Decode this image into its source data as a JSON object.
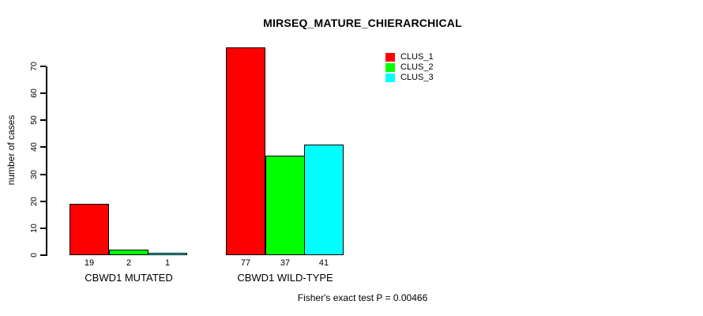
{
  "title": "MIRSEQ_MATURE_CHIERARCHICAL",
  "footnote": "Fisher's exact test P = 0.00466",
  "colors": {
    "background": "#ffffff",
    "axis": "#000000",
    "text": "#000000",
    "bar_border": "#000000",
    "clus1": "#ff0000",
    "clus2": "#00ff00",
    "clus3": "#00ffff"
  },
  "chart_data": {
    "type": "bar",
    "title": "MIRSEQ_MATURE_CHIERARCHICAL",
    "xlabel": "",
    "ylabel": "number of cases",
    "ylim": [
      0,
      70
    ],
    "yticks": [
      0,
      10,
      20,
      30,
      40,
      50,
      60,
      70
    ],
    "grid": false,
    "legend_position": "top-right",
    "categories": [
      "CBWD1 MUTATED",
      "CBWD1 WILD-TYPE"
    ],
    "series": [
      {
        "name": "CLUS_1",
        "color": "#ff0000",
        "values": [
          19,
          77
        ]
      },
      {
        "name": "CLUS_2",
        "color": "#00ff00",
        "values": [
          2,
          37
        ]
      },
      {
        "name": "CLUS_3",
        "color": "#00ffff",
        "values": [
          1,
          41
        ]
      }
    ],
    "bar_value_labels": [
      [
        19,
        2,
        1
      ],
      [
        77,
        37,
        41
      ]
    ],
    "annotation": "Fisher's exact test P = 0.00466"
  }
}
